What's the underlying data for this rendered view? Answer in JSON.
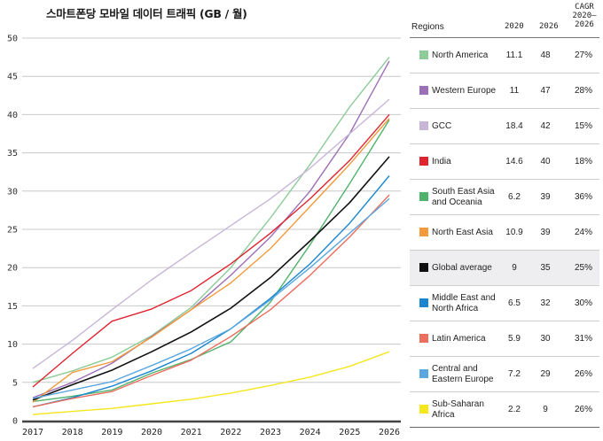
{
  "title": "스마트폰당 모바일 데이터 트래픽 (GB / 월)",
  "chart_data": {
    "type": "line",
    "title": "스마트폰당 모바일 데이터 트래픽 (GB / 월)",
    "xlabel": "",
    "ylabel": "",
    "x": [
      "2017",
      "2018",
      "2019",
      "2020",
      "2021",
      "2022",
      "2023",
      "2024",
      "2025",
      "2026"
    ],
    "ylim": [
      0,
      50
    ],
    "yticks": [
      "0",
      "5",
      "10",
      "15",
      "20",
      "25",
      "30",
      "35",
      "40",
      "45",
      "50"
    ],
    "grid": "horizontal",
    "legend": "right-table",
    "series": [
      {
        "name": "North America",
        "color": "#8dcb98",
        "values": [
          5.0,
          6.5,
          8.3,
          11.1,
          14.8,
          20.0,
          26.5,
          33.5,
          41.0,
          47.5
        ]
      },
      {
        "name": "Western Europe",
        "color": "#9d6fb6",
        "values": [
          3.0,
          5.0,
          7.5,
          11.0,
          14.5,
          19.0,
          24.0,
          30.0,
          37.5,
          47.0
        ]
      },
      {
        "name": "GCC",
        "color": "#c7b6d8",
        "values": [
          6.8,
          10.5,
          14.5,
          18.4,
          22.0,
          25.5,
          29.0,
          33.0,
          37.5,
          42.0
        ]
      },
      {
        "name": "India",
        "color": "#e0242f",
        "values": [
          4.4,
          8.8,
          13.0,
          14.6,
          17.0,
          20.5,
          24.5,
          29.0,
          34.0,
          40.0
        ]
      },
      {
        "name": "South East Asia and Oceania",
        "color": "#4fb36c",
        "values": [
          2.5,
          3.2,
          4.0,
          6.2,
          8.0,
          10.3,
          15.5,
          23.0,
          31.0,
          39.3
        ]
      },
      {
        "name": "North East Asia",
        "color": "#f39a3a",
        "values": [
          2.4,
          6.3,
          7.7,
          10.9,
          14.5,
          18.0,
          22.5,
          28.0,
          33.5,
          39.5
        ]
      },
      {
        "name": "Global average",
        "color": "#111111",
        "values": [
          2.7,
          4.7,
          6.6,
          9.0,
          11.6,
          14.7,
          18.7,
          23.5,
          28.5,
          34.5
        ]
      },
      {
        "name": "Middle East and North Africa",
        "color": "#1a86cf",
        "values": [
          1.8,
          3.0,
          4.5,
          6.5,
          8.8,
          12.0,
          16.0,
          20.5,
          25.8,
          32.0
        ]
      },
      {
        "name": "Latin America",
        "color": "#ec6e5f",
        "values": [
          1.8,
          2.9,
          3.8,
          5.9,
          7.9,
          11.0,
          14.5,
          19.0,
          24.0,
          29.5
        ]
      },
      {
        "name": "Central and Eastern Europe",
        "color": "#5ba7df",
        "values": [
          2.9,
          4.0,
          5.1,
          7.2,
          9.4,
          12.0,
          15.8,
          20.0,
          24.5,
          29.0
        ]
      },
      {
        "name": "Sub-Saharan Africa",
        "color": "#f4e71c",
        "values": [
          0.8,
          1.2,
          1.6,
          2.2,
          2.8,
          3.6,
          4.6,
          5.7,
          7.1,
          9.0
        ]
      }
    ]
  },
  "table": {
    "headers": {
      "regions": "Regions",
      "y2020": "2020",
      "y2026": "2026",
      "cagr_line1": "CAGR",
      "cagr_line2": "2020–",
      "cagr_line3": "2026"
    },
    "rows": [
      {
        "region": "North America",
        "v2020": "11.1",
        "v2026": "48",
        "cagr": "27%",
        "color": "#8dcb98"
      },
      {
        "region": "Western Europe",
        "v2020": "11",
        "v2026": "47",
        "cagr": "28%",
        "color": "#9d6fb6"
      },
      {
        "region": "GCC",
        "v2020": "18.4",
        "v2026": "42",
        "cagr": "15%",
        "color": "#c7b6d8"
      },
      {
        "region": "India",
        "v2020": "14.6",
        "v2026": "40",
        "cagr": "18%",
        "color": "#e0242f"
      },
      {
        "region": "South East Asia and Oceania",
        "v2020": "6.2",
        "v2026": "39",
        "cagr": "36%",
        "color": "#4fb36c"
      },
      {
        "region": "North East Asia",
        "v2020": "10.9",
        "v2026": "39",
        "cagr": "24%",
        "color": "#f39a3a"
      },
      {
        "region": "Global average",
        "v2020": "9",
        "v2026": "35",
        "cagr": "25%",
        "color": "#111111",
        "highlight": true
      },
      {
        "region": "Middle East and North Africa",
        "v2020": "6.5",
        "v2026": "32",
        "cagr": "30%",
        "color": "#1a86cf"
      },
      {
        "region": "Latin America",
        "v2020": "5.9",
        "v2026": "30",
        "cagr": "31%",
        "color": "#ec6e5f"
      },
      {
        "region": "Central and Eastern Europe",
        "v2020": "7.2",
        "v2026": "29",
        "cagr": "26%",
        "color": "#5ba7df"
      },
      {
        "region": "Sub-Saharan Africa",
        "v2020": "2.2",
        "v2026": "9",
        "cagr": "26%",
        "color": "#f4e71c"
      }
    ]
  }
}
